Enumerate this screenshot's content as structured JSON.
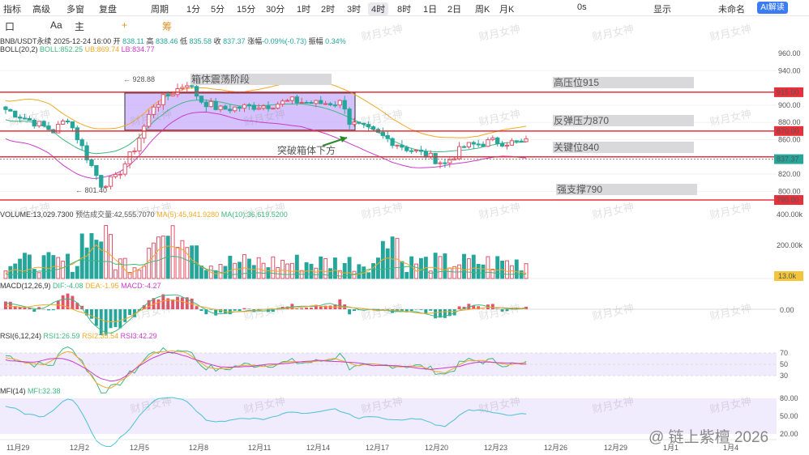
{
  "toolbar": {
    "items": [
      "指标",
      "高级",
      "多窗",
      "复盘",
      "周期",
      "1分",
      "5分",
      "15分",
      "30分",
      "1时",
      "2时",
      "3时",
      "4时",
      "8时",
      "1日",
      "2日",
      "周K",
      "月K"
    ],
    "active": "4时",
    "right_zero": "0s",
    "right_display": "显示",
    "user": "未命名",
    "ai_label": "AI解读"
  },
  "tools2": {
    "items": [
      "口",
      "Aa",
      "主",
      "+",
      "筹"
    ]
  },
  "info": {
    "symbol": "BNB/USDT永续",
    "datetime": "2025-12-24 16:00",
    "open_label": "开",
    "open": "838.11",
    "high_label": "高",
    "high": "838.46",
    "low_label": "低",
    "low": "835.58",
    "close_label": "收",
    "close": "837.37",
    "change_label": "涨幅",
    "change": "-0.09%(-0.73)",
    "amp_label": "振幅",
    "amp": "0.34%"
  },
  "boll": {
    "label": "BOLL(20,2)",
    "mid": "BOLL:852.25",
    "ub": "UB:869.74",
    "lb": "LB:834.77"
  },
  "volume": {
    "label": "VOLUME:13,029.7300",
    "est": "预估成交量:42,555.7070",
    "ma5": "MA(5):45,941.9280",
    "ma10": "MA(10):36,619.5200"
  },
  "macd": {
    "label": "MACD(12,26,9)",
    "dif": "DIF:-4.08",
    "dea": "DEA:-1.95",
    "macd": "MACD:-4.27"
  },
  "rsi": {
    "label": "RSI(6,12,24)",
    "rsi1": "RSI1:26.59",
    "rsi2": "RSI2:35.54",
    "rsi3": "RSI3:42.29"
  },
  "mfi": {
    "label": "MFI(14)",
    "val": "MFI:32.38"
  },
  "annotations": {
    "box_title": "箱体震荡阶段",
    "breakdown": "突破箱体下方",
    "resistance_high": "高压位915",
    "rebound": "反弹压力870",
    "key": "关键位840",
    "support": "强支撑790",
    "max_label": "928.88",
    "min_label": "801.40"
  },
  "colors": {
    "up": "#e0546a",
    "down": "#26a69a",
    "level": "#e8303a",
    "box": "#c7aefc",
    "boll_up": "#f0a928",
    "boll_mid": "#3fb87f",
    "boll_low": "#c83cc8"
  },
  "watermark": "@ 链上紫檀 2026",
  "watermark_small": "财月女神",
  "chart_data": {
    "type": "candlestick",
    "title": "BNB/USDT永续 4时",
    "x_ticks": [
      "11月29",
      "12月2",
      "12月5",
      "12月8",
      "12月11",
      "12月14",
      "12月17",
      "12月20",
      "12月23",
      "12月26",
      "12月29",
      "1月1",
      "1月4"
    ],
    "y_ticks": [
      960,
      940,
      915,
      900,
      880,
      870,
      860,
      837.37,
      820,
      800,
      790
    ],
    "levels": [
      {
        "name": "高压位915",
        "value": 915
      },
      {
        "name": "反弹压力870",
        "value": 870
      },
      {
        "name": "关键位840",
        "value": 840
      },
      {
        "name": "强支撑790",
        "value": 790
      }
    ],
    "last_price": 837.37,
    "extremes": {
      "high": 928.88,
      "low": 801.4
    },
    "volume_ticks": [
      "400.00k",
      "200.00k",
      "13.0k"
    ],
    "macd_ticks": [
      "0.00"
    ],
    "rsi_ticks": [
      70,
      50,
      30
    ],
    "mfi_ticks": [
      80,
      50,
      20
    ]
  }
}
